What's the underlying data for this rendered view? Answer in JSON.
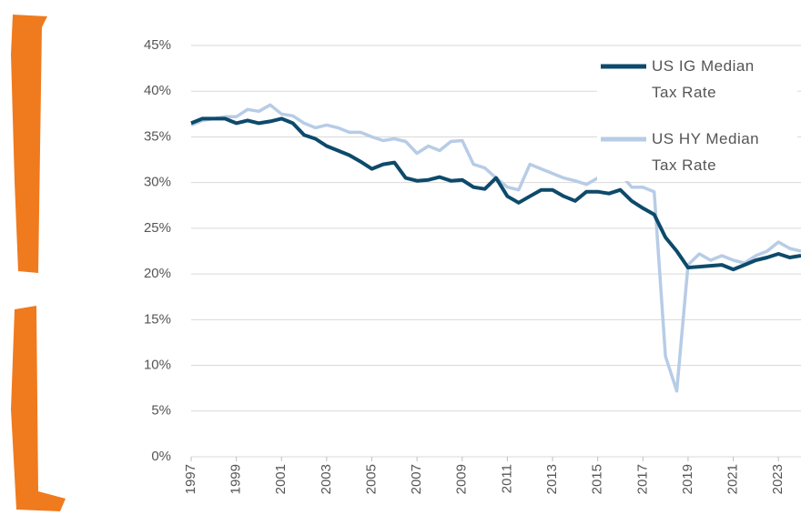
{
  "chart_data": {
    "type": "line",
    "x": [
      1997,
      1997.5,
      1998,
      1998.5,
      1999,
      1999.5,
      2000,
      2000.5,
      2001,
      2001.5,
      2002,
      2002.5,
      2003,
      2003.5,
      2004,
      2004.5,
      2005,
      2005.5,
      2006,
      2006.5,
      2007,
      2007.5,
      2008,
      2008.5,
      2009,
      2009.5,
      2010,
      2010.5,
      2011,
      2011.5,
      2012,
      2012.5,
      2013,
      2013.5,
      2014,
      2014.5,
      2015,
      2015.5,
      2016,
      2016.5,
      2017,
      2017.5,
      2018,
      2018.5,
      2019,
      2019.5,
      2020,
      2020.5,
      2021,
      2021.5,
      2022,
      2022.5,
      2023,
      2023.5,
      2024
    ],
    "series": [
      {
        "name": "US IG Median Tax Rate",
        "color": "#0d4a6b",
        "values": [
          36.5,
          37,
          37,
          37,
          36.5,
          36.8,
          36.5,
          36.7,
          37,
          36.5,
          35.2,
          34.8,
          34,
          33.5,
          33,
          32.3,
          31.5,
          32,
          32.2,
          30.5,
          30.2,
          30.3,
          30.6,
          30.2,
          30.3,
          29.5,
          29.3,
          30.5,
          28.5,
          27.8,
          28.5,
          29.2,
          29.2,
          28.5,
          28,
          29,
          29,
          28.8,
          29.2,
          28,
          27.2,
          26.5,
          24,
          22.5,
          20.7,
          20.8,
          20.9,
          21,
          20.5,
          21,
          21.5,
          21.8,
          22.2,
          21.8,
          22
        ]
      },
      {
        "name": "US HY Median Tax Rate",
        "color": "#b7cce6",
        "values": [
          36.3,
          36.8,
          37,
          37.2,
          37.2,
          38,
          37.8,
          38.5,
          37.5,
          37.3,
          36.5,
          36,
          36.3,
          36,
          35.5,
          35.5,
          35,
          34.6,
          34.8,
          34.5,
          33.2,
          34,
          33.5,
          34.5,
          34.6,
          32,
          31.6,
          30.5,
          29.5,
          29.2,
          32,
          31.5,
          31,
          30.5,
          30.2,
          29.8,
          30.5,
          30.5,
          31,
          29.5,
          29.5,
          29,
          11,
          7.2,
          21,
          22.2,
          21.5,
          22,
          21.5,
          21.2,
          22,
          22.5,
          23.5,
          22.8,
          22.5
        ]
      }
    ],
    "xlim": [
      1997,
      2024
    ],
    "xticks": [
      1997,
      1999,
      2001,
      2003,
      2005,
      2007,
      2009,
      2011,
      2013,
      2015,
      2017,
      2019,
      2021,
      2023
    ],
    "ylim": [
      0,
      45
    ],
    "yticks": [
      {
        "value": 0,
        "label": "0%"
      },
      {
        "value": 5,
        "label": "5%"
      },
      {
        "value": 10,
        "label": "10%"
      },
      {
        "value": 15,
        "label": "15%"
      },
      {
        "value": 20,
        "label": "20%"
      },
      {
        "value": 25,
        "label": "25%"
      },
      {
        "value": 30,
        "label": "30%"
      },
      {
        "value": 35,
        "label": "35%"
      },
      {
        "value": 40,
        "label": "40%"
      },
      {
        "value": 45,
        "label": "45%"
      }
    ],
    "grid": true,
    "legend": "upper-right"
  }
}
